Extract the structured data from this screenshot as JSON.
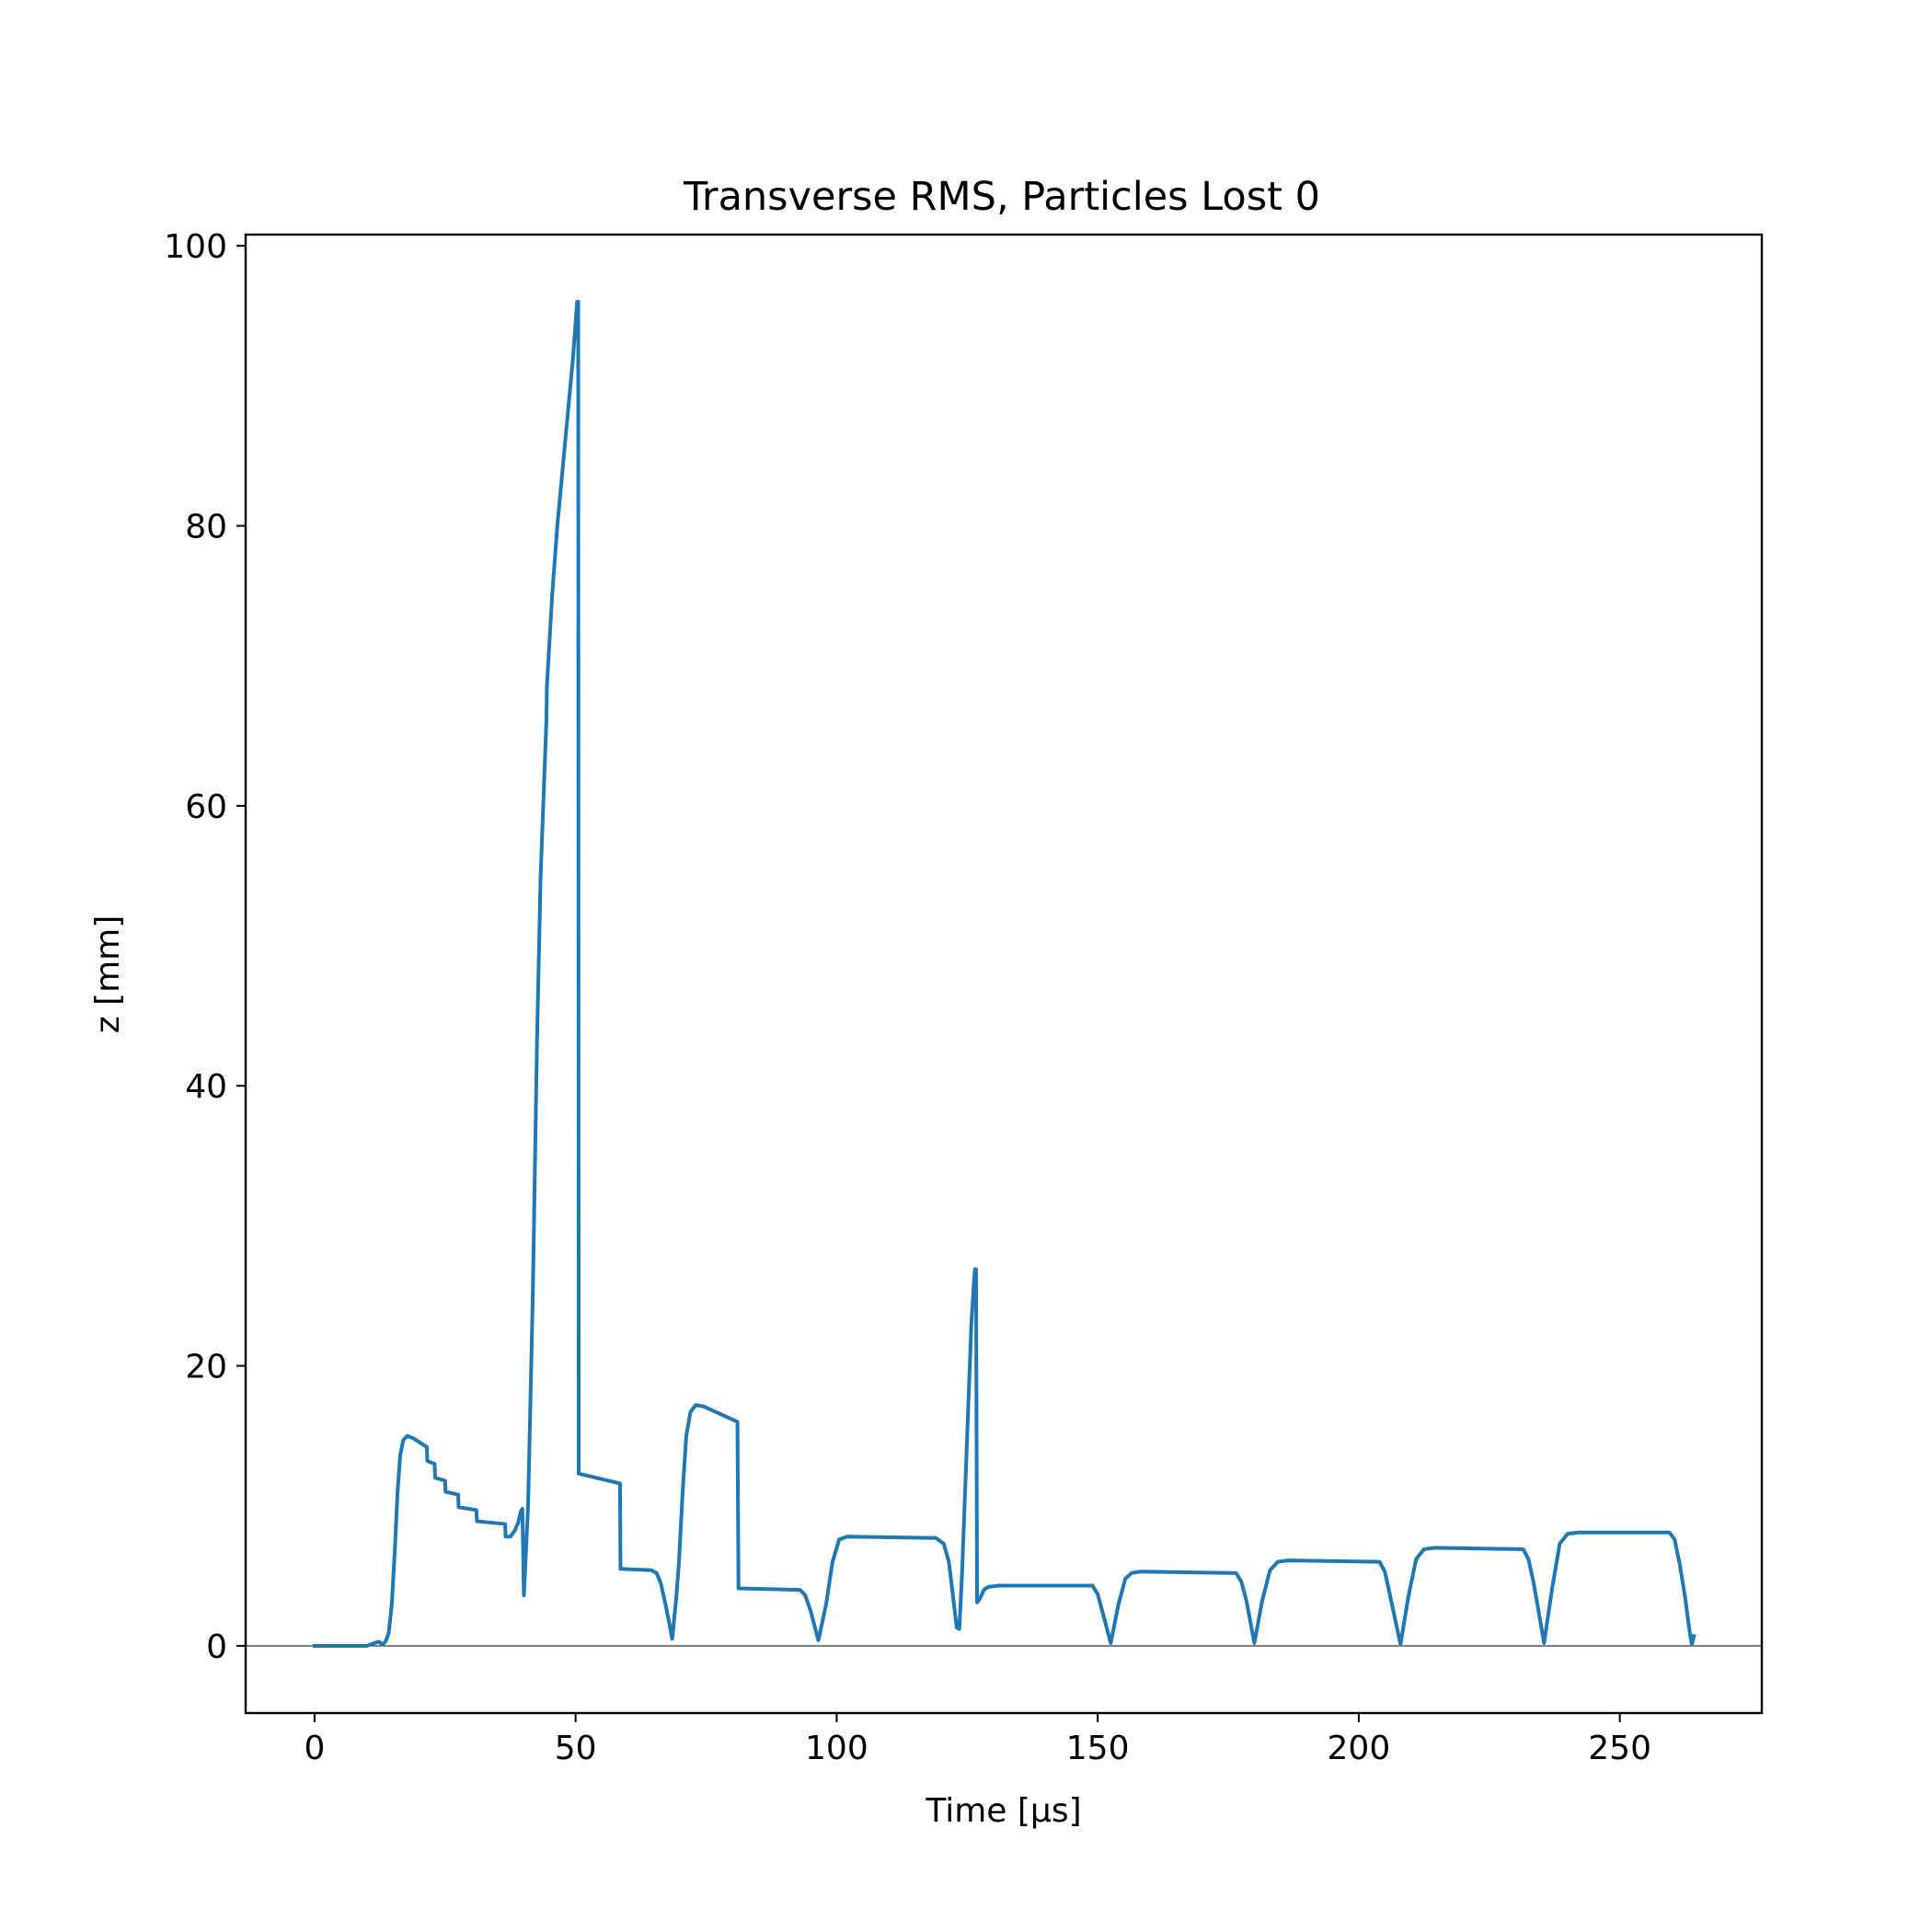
{
  "chart_data": {
    "type": "line",
    "title": "Transverse RMS, Particles Lost 0",
    "xlabel": "Time [μs]",
    "ylabel": "z [mm]",
    "xlim": [
      -13.2,
      277.2
    ],
    "ylim": [
      -4.8,
      100.8
    ],
    "x_ticks": [
      0,
      50,
      100,
      150,
      200,
      250
    ],
    "y_ticks": [
      0,
      20,
      40,
      60,
      80,
      100
    ],
    "grid": false,
    "legend": "none",
    "colors": {
      "series": "#1f77b4",
      "zero_line": "#000000",
      "axes": "#000000"
    },
    "reference_lines": [
      {
        "y": 0,
        "color": "#000000"
      }
    ],
    "series": [
      {
        "color": "#1f77b4",
        "points": [
          [
            0,
            0
          ],
          [
            10,
            0
          ],
          [
            11.5,
            0.2
          ],
          [
            12.3,
            0.3
          ],
          [
            13.0,
            0.1
          ],
          [
            13.6,
            0.3
          ],
          [
            14.2,
            0.9
          ],
          [
            14.8,
            3.0
          ],
          [
            15.4,
            7.0
          ],
          [
            15.9,
            11.0
          ],
          [
            16.4,
            13.6
          ],
          [
            17.0,
            14.7
          ],
          [
            17.8,
            15.0
          ],
          [
            19.0,
            14.8
          ],
          [
            21.5,
            14.2
          ],
          [
            21.6,
            13.2
          ],
          [
            23.0,
            13.0
          ],
          [
            23.1,
            12.0
          ],
          [
            25.0,
            11.8
          ],
          [
            25.1,
            11.0
          ],
          [
            27.5,
            10.8
          ],
          [
            27.6,
            9.9
          ],
          [
            31.0,
            9.7
          ],
          [
            31.1,
            8.9
          ],
          [
            36.5,
            8.7
          ],
          [
            36.6,
            7.8
          ],
          [
            37.5,
            7.8
          ],
          [
            38.3,
            8.2
          ],
          [
            39.0,
            8.8
          ],
          [
            39.5,
            9.6
          ],
          [
            39.8,
            9.8
          ],
          [
            40.1,
            3.6
          ],
          [
            40.9,
            10.0
          ],
          [
            41.8,
            25.0
          ],
          [
            42.6,
            43.0
          ],
          [
            43.3,
            55.0
          ],
          [
            44.0,
            62.0
          ],
          [
            44.4,
            66.0
          ],
          [
            44.5,
            68.5
          ],
          [
            45.5,
            75.0
          ],
          [
            46.5,
            80.0
          ],
          [
            48.0,
            86.0
          ],
          [
            49.5,
            92.0
          ],
          [
            50.3,
            96.0
          ],
          [
            50.5,
            96.0
          ],
          [
            50.6,
            12.3
          ],
          [
            58.5,
            11.6
          ],
          [
            58.6,
            5.5
          ],
          [
            64.5,
            5.4
          ],
          [
            65.5,
            5.2
          ],
          [
            66.3,
            4.5
          ],
          [
            67.2,
            3.0
          ],
          [
            68.0,
            1.5
          ],
          [
            68.5,
            0.5
          ],
          [
            69.3,
            3.5
          ],
          [
            69.8,
            6.0
          ],
          [
            70.5,
            11.0
          ],
          [
            71.2,
            15.0
          ],
          [
            72.0,
            16.7
          ],
          [
            73.0,
            17.2
          ],
          [
            74.5,
            17.1
          ],
          [
            81.0,
            16.0
          ],
          [
            81.2,
            4.1
          ],
          [
            93.0,
            4.0
          ],
          [
            94.0,
            3.6
          ],
          [
            95.0,
            2.5
          ],
          [
            96.5,
            0.4
          ],
          [
            98.0,
            3.0
          ],
          [
            99.2,
            6.0
          ],
          [
            100.5,
            7.6
          ],
          [
            102.0,
            7.8
          ],
          [
            119.0,
            7.7
          ],
          [
            120.5,
            7.3
          ],
          [
            121.5,
            6.0
          ],
          [
            122.3,
            3.5
          ],
          [
            123.0,
            1.3
          ],
          [
            123.5,
            1.2
          ],
          [
            124.0,
            5.0
          ],
          [
            124.8,
            13.0
          ],
          [
            125.3,
            18.0
          ],
          [
            125.8,
            23.0
          ],
          [
            126.3,
            26.0
          ],
          [
            126.5,
            26.9
          ],
          [
            126.7,
            26.9
          ],
          [
            126.9,
            3.1
          ],
          [
            127.5,
            3.4
          ],
          [
            128.2,
            4.0
          ],
          [
            129.0,
            4.2
          ],
          [
            131.0,
            4.3
          ],
          [
            149.0,
            4.3
          ],
          [
            150.0,
            3.7
          ],
          [
            151.0,
            2.3
          ],
          [
            152.5,
            0.2
          ],
          [
            154.0,
            3.0
          ],
          [
            155.3,
            4.8
          ],
          [
            156.5,
            5.2
          ],
          [
            158.0,
            5.3
          ],
          [
            176.5,
            5.2
          ],
          [
            177.5,
            4.6
          ],
          [
            178.5,
            3.2
          ],
          [
            180.0,
            0.2
          ],
          [
            181.5,
            3.2
          ],
          [
            183.0,
            5.4
          ],
          [
            184.5,
            6.0
          ],
          [
            186.5,
            6.1
          ],
          [
            204.0,
            6.0
          ],
          [
            205.0,
            5.3
          ],
          [
            206.0,
            3.6
          ],
          [
            208.0,
            0.1
          ],
          [
            209.5,
            3.5
          ],
          [
            211.0,
            6.2
          ],
          [
            212.5,
            6.9
          ],
          [
            214.5,
            7.0
          ],
          [
            231.5,
            6.9
          ],
          [
            232.5,
            6.2
          ],
          [
            233.5,
            4.5
          ],
          [
            235.5,
            0.2
          ],
          [
            237.0,
            4.0
          ],
          [
            238.5,
            7.3
          ],
          [
            240.0,
            8.0
          ],
          [
            242.0,
            8.1
          ],
          [
            259.5,
            8.1
          ],
          [
            260.5,
            7.6
          ],
          [
            261.5,
            5.8
          ],
          [
            262.5,
            3.5
          ],
          [
            263.3,
            1.2
          ],
          [
            263.8,
            0.1
          ],
          [
            264.2,
            0.7
          ]
        ]
      }
    ]
  }
}
